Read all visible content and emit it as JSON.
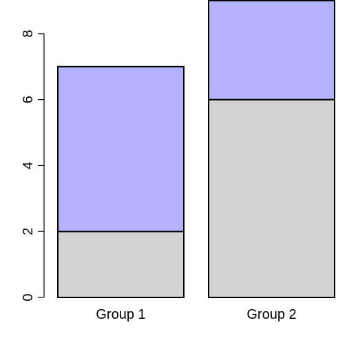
{
  "chart_data": {
    "type": "bar",
    "stacked": true,
    "categories": [
      "Group 1",
      "Group 2"
    ],
    "series": [
      {
        "values": [
          2,
          6
        ],
        "color": "#d3d3d3"
      },
      {
        "values": [
          5,
          3
        ],
        "color": "#b3b3ff"
      }
    ],
    "y_ticks": [
      "0",
      "2",
      "4",
      "6",
      "8"
    ],
    "ylim": [
      0,
      9
    ],
    "title": "",
    "xlabel": "",
    "ylabel": "",
    "grid": false,
    "legend": "none"
  }
}
